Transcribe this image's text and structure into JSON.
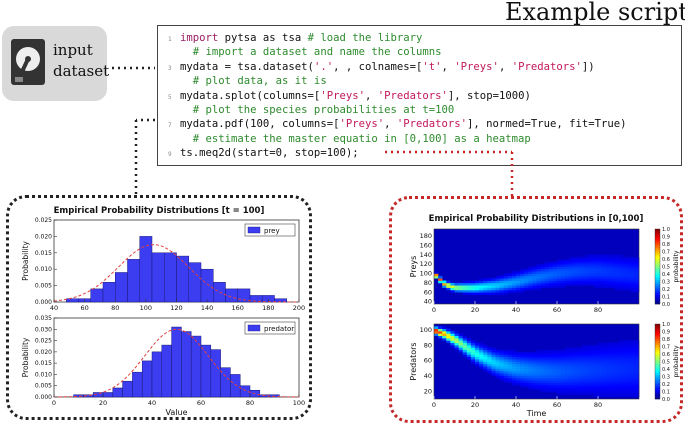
{
  "page": {
    "title": "Example script",
    "input_label_line1": "input",
    "input_label_line2": "dataset"
  },
  "code": {
    "lines": [
      [
        {
          "t": "import",
          "c": "kw"
        },
        {
          "t": " pytsa as tsa ",
          "c": ""
        },
        {
          "t": "# load the library",
          "c": "cm"
        }
      ],
      [
        {
          "t": "  # import a dataset and name the columns",
          "c": "cm"
        }
      ],
      [
        {
          "t": "mydata = tsa.dataset(",
          "c": ""
        },
        {
          "t": "'.'",
          "c": "st"
        },
        {
          "t": ", , colnames=[",
          "c": ""
        },
        {
          "t": "'t'",
          "c": "st"
        },
        {
          "t": ", ",
          "c": ""
        },
        {
          "t": "'Preys'",
          "c": "st"
        },
        {
          "t": ", ",
          "c": ""
        },
        {
          "t": "'Predators'",
          "c": "st"
        },
        {
          "t": "])",
          "c": ""
        }
      ],
      [
        {
          "t": "  # plot data, as it is",
          "c": "cm"
        }
      ],
      [
        {
          "t": "mydata.splot(columns=[",
          "c": ""
        },
        {
          "t": "'Preys'",
          "c": "st"
        },
        {
          "t": ", ",
          "c": ""
        },
        {
          "t": "'Predators'",
          "c": "st"
        },
        {
          "t": "], stop=1000)",
          "c": ""
        }
      ],
      [
        {
          "t": "  # plot the species probabilities at t=100",
          "c": "cm"
        }
      ],
      [
        {
          "t": "mydata.pdf(100, columns=[",
          "c": ""
        },
        {
          "t": "'Preys'",
          "c": "st"
        },
        {
          "t": ", ",
          "c": ""
        },
        {
          "t": "'Predators'",
          "c": "st"
        },
        {
          "t": "], normed=True, fit=True)",
          "c": ""
        }
      ],
      [
        {
          "t": "  # estimate the master equatio in [0,100] as a heatmap",
          "c": "cm"
        }
      ],
      [
        {
          "t": "ts.meq2d(start=0, stop=100);",
          "c": ""
        }
      ]
    ]
  },
  "colors": {
    "bar_fill": "#3c3cf0",
    "bar_edge": "#1a1a7a",
    "fit_line": "#e04040",
    "dots_dark": "#222222",
    "dots_red": "#c62828"
  },
  "chart_data": [
    {
      "type": "bar",
      "title": "Empirical Probability Distributions [t = 100]",
      "xlabel": "",
      "ylabel": "Probability",
      "xlim": [
        40,
        200
      ],
      "ylim": [
        0,
        0.025
      ],
      "x_ticks": [
        "40",
        "60",
        "80",
        "100",
        "120",
        "140",
        "160",
        "180",
        "200"
      ],
      "y_ticks": [
        "0.000",
        "0.005",
        "0.010",
        "0.015",
        "0.020",
        "0.025"
      ],
      "series": [
        {
          "name": "prey",
          "bin_width": 8,
          "bins": [
            {
              "x": 48,
              "y": 0.001
            },
            {
              "x": 56,
              "y": 0.001
            },
            {
              "x": 64,
              "y": 0.004
            },
            {
              "x": 72,
              "y": 0.006
            },
            {
              "x": 80,
              "y": 0.009
            },
            {
              "x": 88,
              "y": 0.013
            },
            {
              "x": 96,
              "y": 0.02
            },
            {
              "x": 104,
              "y": 0.015
            },
            {
              "x": 112,
              "y": 0.015
            },
            {
              "x": 120,
              "y": 0.014
            },
            {
              "x": 128,
              "y": 0.012
            },
            {
              "x": 136,
              "y": 0.01
            },
            {
              "x": 144,
              "y": 0.006
            },
            {
              "x": 152,
              "y": 0.004
            },
            {
              "x": 160,
              "y": 0.004
            },
            {
              "x": 168,
              "y": 0.002
            },
            {
              "x": 176,
              "y": 0.002
            },
            {
              "x": 184,
              "y": 0.001
            }
          ]
        }
      ],
      "fit": {
        "mean": 105,
        "sd": 23,
        "peak": 0.0175
      },
      "legend": "top-right"
    },
    {
      "type": "bar",
      "title": "",
      "xlabel": "Value",
      "ylabel": "Probability",
      "xlim": [
        0,
        100
      ],
      "ylim": [
        0,
        0.035
      ],
      "x_ticks": [
        "0",
        "20",
        "40",
        "60",
        "80",
        "100"
      ],
      "y_ticks": [
        "0.000",
        "0.005",
        "0.010",
        "0.015",
        "0.020",
        "0.025",
        "0.030",
        "0.035"
      ],
      "series": [
        {
          "name": "predator",
          "bin_width": 4,
          "bins": [
            {
              "x": 8,
              "y": 0.001
            },
            {
              "x": 12,
              "y": 0.001
            },
            {
              "x": 16,
              "y": 0.002
            },
            {
              "x": 20,
              "y": 0.002
            },
            {
              "x": 24,
              "y": 0.004
            },
            {
              "x": 28,
              "y": 0.007
            },
            {
              "x": 32,
              "y": 0.011
            },
            {
              "x": 36,
              "y": 0.016
            },
            {
              "x": 40,
              "y": 0.02
            },
            {
              "x": 44,
              "y": 0.023
            },
            {
              "x": 48,
              "y": 0.031
            },
            {
              "x": 52,
              "y": 0.029
            },
            {
              "x": 56,
              "y": 0.027
            },
            {
              "x": 60,
              "y": 0.023
            },
            {
              "x": 64,
              "y": 0.021
            },
            {
              "x": 68,
              "y": 0.013
            },
            {
              "x": 72,
              "y": 0.01
            },
            {
              "x": 76,
              "y": 0.005
            },
            {
              "x": 80,
              "y": 0.003
            },
            {
              "x": 84,
              "y": 0.001
            },
            {
              "x": 88,
              "y": 0.001
            }
          ]
        }
      ],
      "fit": {
        "mean": 50,
        "sd": 13,
        "peak": 0.03
      },
      "legend": "top-right"
    },
    {
      "type": "heatmap",
      "title": "Empirical Probability Distributions in [0,100]",
      "xlabel": "",
      "ylabel": "Preys",
      "xlim": [
        0,
        100
      ],
      "ylim": [
        35,
        195
      ],
      "x_ticks": [
        "0",
        "20",
        "40",
        "60",
        "80"
      ],
      "y_ticks": [
        "40",
        "60",
        "80",
        "100",
        "120",
        "140",
        "160",
        "180"
      ],
      "ridge": [
        [
          0,
          100
        ],
        [
          5,
          78
        ],
        [
          10,
          70
        ],
        [
          20,
          70
        ],
        [
          30,
          74
        ],
        [
          40,
          82
        ],
        [
          50,
          92
        ],
        [
          60,
          100
        ],
        [
          70,
          105
        ],
        [
          80,
          106
        ],
        [
          90,
          102
        ],
        [
          100,
          98
        ]
      ],
      "colorbar": {
        "label": "probability",
        "min": 0,
        "max": 1,
        "ticks": [
          "0.0",
          "0.1",
          "0.2",
          "0.3",
          "0.4",
          "0.5",
          "0.6",
          "0.7",
          "0.8",
          "0.9",
          "1.0"
        ]
      }
    },
    {
      "type": "heatmap",
      "title": "",
      "xlabel": "Time",
      "ylabel": "Predators",
      "xlim": [
        0,
        100
      ],
      "ylim": [
        10,
        108
      ],
      "x_ticks": [
        "0",
        "20",
        "40",
        "60",
        "80"
      ],
      "y_ticks": [
        "20",
        "40",
        "60",
        "80",
        "100"
      ],
      "ridge": [
        [
          0,
          100
        ],
        [
          5,
          95
        ],
        [
          10,
          88
        ],
        [
          20,
          70
        ],
        [
          30,
          57
        ],
        [
          40,
          50
        ],
        [
          50,
          47
        ],
        [
          60,
          46
        ],
        [
          70,
          47
        ],
        [
          80,
          48
        ],
        [
          90,
          49
        ],
        [
          100,
          50
        ]
      ],
      "colorbar": {
        "label": "probability",
        "min": 0,
        "max": 1,
        "ticks": [
          "0.0",
          "0.1",
          "0.2",
          "0.3",
          "0.4",
          "0.5",
          "0.6",
          "0.7",
          "0.8",
          "0.9",
          "1.0"
        ]
      }
    }
  ]
}
